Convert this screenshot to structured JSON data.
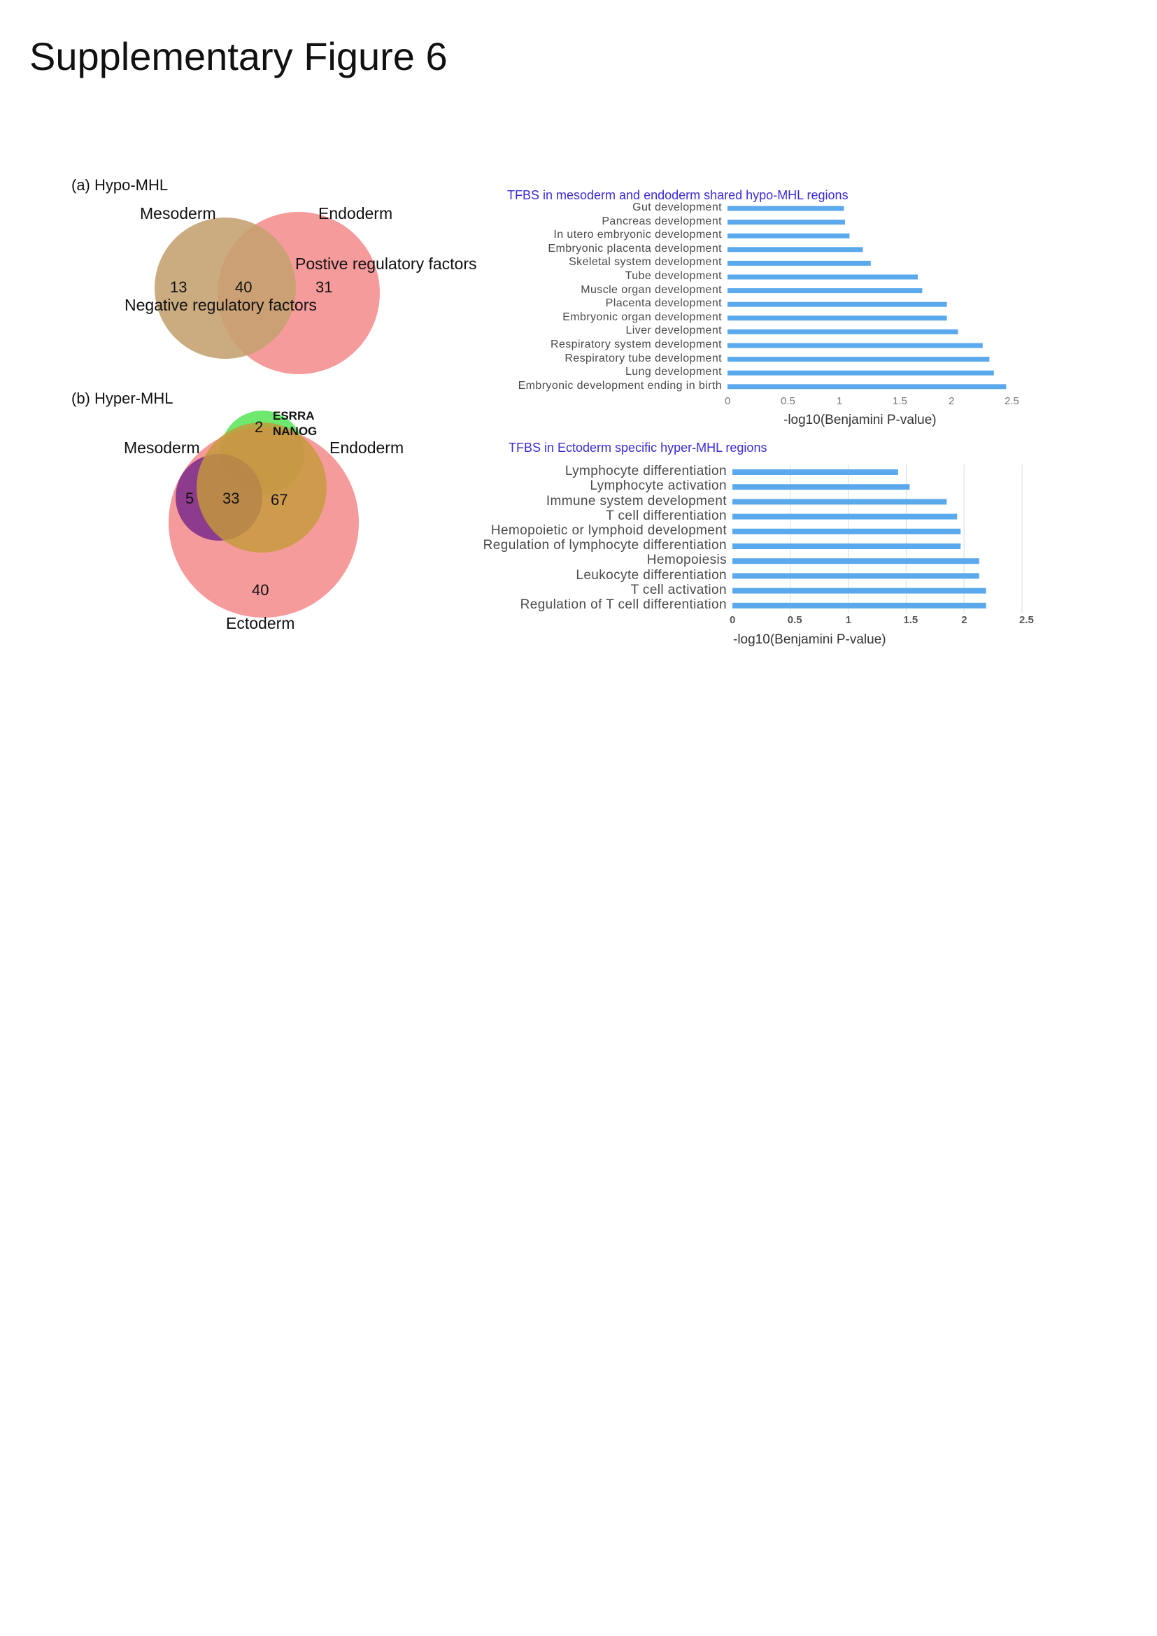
{
  "page": {
    "title": "Supplementary Figure 6"
  },
  "panel_a": {
    "label": "(a) Hypo-MHL",
    "set_left": "Mesoderm",
    "set_right": "Endoderm",
    "only_left": "13",
    "both": "40",
    "only_right": "31",
    "annotation_positive": "Postive regulatory factors",
    "annotation_negative": "Negative regulatory factors",
    "colors": {
      "left": "#c4a06e",
      "right": "#f37a7a"
    }
  },
  "panel_b": {
    "label": "(b) Hyper-MHL",
    "set_mesoderm": "Mesoderm",
    "set_endoderm": "Endoderm",
    "set_ectoderm": "Ectoderm",
    "count_mesoderm_only": "5",
    "count_meso_endo": "33",
    "count_endo": "67",
    "count_ectoderm": "40",
    "count_top": "2",
    "genes": [
      "ESRRA",
      "NANOG"
    ],
    "colors": {
      "ectoderm": "#f37a7a",
      "mesoderm": "#7a2a8a",
      "endoderm": "#c49a3a",
      "top": "#5ee65e"
    }
  },
  "chart_data": [
    {
      "type": "bar",
      "orientation": "horizontal",
      "title": "TFBS in mesoderm and endoderm shared hypo-MHL regions",
      "xlabel": "-log10(Benjamini P-value)",
      "ylabel": "",
      "xlim": [
        0,
        2.5
      ],
      "xticks": [
        "0",
        "0.5",
        "1",
        "1.5",
        "2",
        "2.5"
      ],
      "grid": false,
      "bar_color": "#5aa9ec",
      "categories": [
        "Gut development",
        "Pancreas development",
        "In utero embryonic development",
        "Embryonic placenta development",
        "Skeletal system development",
        "Tube development",
        "Muscle organ development",
        "Placenta development",
        "Embryonic organ development",
        "Liver development",
        "Respiratory system development",
        "Respiratory tube development",
        "Lung development",
        "Embryonic development ending in birth"
      ],
      "values": [
        1.04,
        1.05,
        1.09,
        1.21,
        1.28,
        1.7,
        1.74,
        1.96,
        1.96,
        2.06,
        2.28,
        2.34,
        2.38,
        2.49
      ]
    },
    {
      "type": "bar",
      "orientation": "horizontal",
      "title": "TFBS in Ectoderm specific hyper-MHL regions",
      "xlabel": "-log10(Benjamini P-value)",
      "ylabel": "",
      "xlim": [
        0,
        2.5
      ],
      "xticks": [
        "0",
        "0.5",
        "1",
        "1.5",
        "2",
        "2.5"
      ],
      "grid": true,
      "bar_color": "#5aa9ec",
      "categories": [
        "Lymphocyte differentiation",
        "Lymphocyte activation",
        "Immune system development",
        "T cell differentiation",
        "Hemopoietic or lymphoid development",
        "Regulation of lymphocyte differentiation",
        "Hemopoiesis",
        "Leukocyte differentiation",
        "T cell activation",
        "Regulation of T cell differentiation"
      ],
      "values": [
        1.43,
        1.53,
        1.85,
        1.94,
        1.97,
        1.97,
        2.13,
        2.13,
        2.19,
        2.19
      ]
    }
  ]
}
